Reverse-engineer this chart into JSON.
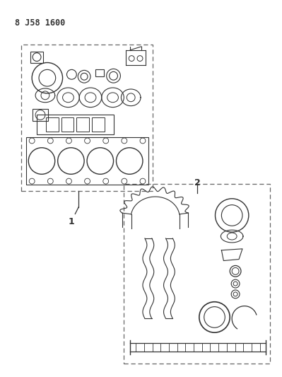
{
  "title": "8 J58 1600",
  "bg_color": "#ffffff",
  "line_color": "#333333",
  "dashed_color": "#666666",
  "label1": "1",
  "label2": "2",
  "figsize": [
    3.99,
    5.33
  ],
  "dpi": 100
}
